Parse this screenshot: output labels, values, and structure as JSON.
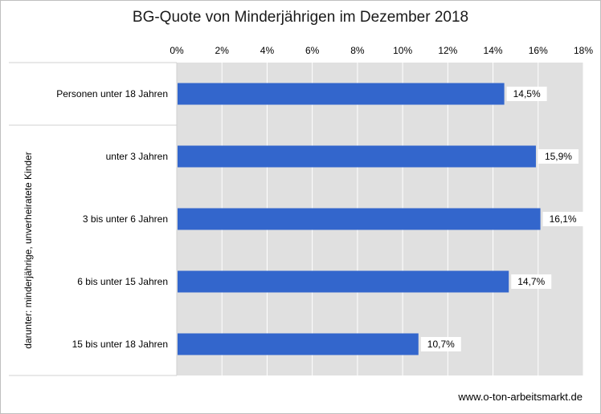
{
  "chart_data": {
    "type": "bar",
    "orientation": "horizontal",
    "title": "BG-Quote von Minderjährigen im Dezember 2018",
    "categories": [
      "Personen unter 18 Jahren",
      "unter 3 Jahren",
      "3 bis unter 6 Jahren",
      "6 bis unter 15 Jahren",
      "15 bis unter 18 Jahren"
    ],
    "values": [
      14.5,
      15.9,
      16.1,
      14.7,
      10.7
    ],
    "data_labels": [
      "14,5%",
      "15,9%",
      "16,1%",
      "14,7%",
      "10,7%"
    ],
    "group_label": "darunter: minderjährige, unverheiratete Kinder",
    "x_ticks": [
      0,
      2,
      4,
      6,
      8,
      10,
      12,
      14,
      16,
      18
    ],
    "x_tick_labels": [
      "0%",
      "2%",
      "4%",
      "6%",
      "8%",
      "10%",
      "12%",
      "14%",
      "16%",
      "18%"
    ],
    "xlim": [
      0,
      18
    ],
    "xaxis_position": "top",
    "grid": true,
    "bar_color": "#3366cc",
    "plot_background": "#e0e0e0"
  },
  "footer": {
    "source": "www.o-ton-arbeitsmarkt.de"
  }
}
